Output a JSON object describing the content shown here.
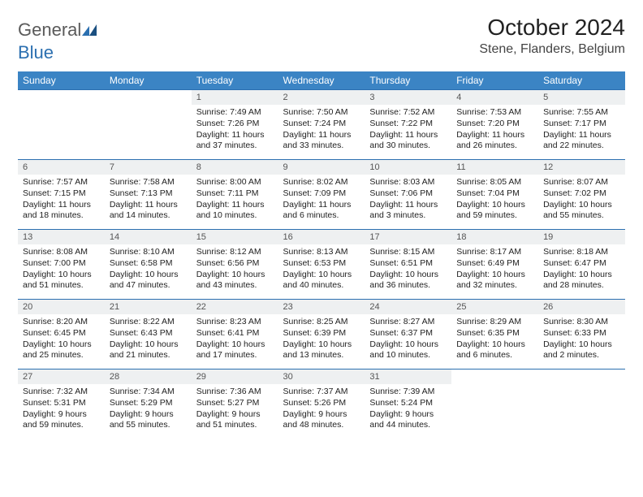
{
  "logo": {
    "general": "General",
    "blue": "Blue"
  },
  "title": "October 2024",
  "location": "Stene, Flanders, Belgium",
  "header_color": "#3b84c4",
  "divider_color": "#2b6fb0",
  "daynum_bg": "#eef0f1",
  "days": [
    "Sunday",
    "Monday",
    "Tuesday",
    "Wednesday",
    "Thursday",
    "Friday",
    "Saturday"
  ],
  "weeks": [
    [
      null,
      null,
      {
        "n": "1",
        "sr": "Sunrise: 7:49 AM",
        "ss": "Sunset: 7:26 PM",
        "dl": "Daylight: 11 hours and 37 minutes."
      },
      {
        "n": "2",
        "sr": "Sunrise: 7:50 AM",
        "ss": "Sunset: 7:24 PM",
        "dl": "Daylight: 11 hours and 33 minutes."
      },
      {
        "n": "3",
        "sr": "Sunrise: 7:52 AM",
        "ss": "Sunset: 7:22 PM",
        "dl": "Daylight: 11 hours and 30 minutes."
      },
      {
        "n": "4",
        "sr": "Sunrise: 7:53 AM",
        "ss": "Sunset: 7:20 PM",
        "dl": "Daylight: 11 hours and 26 minutes."
      },
      {
        "n": "5",
        "sr": "Sunrise: 7:55 AM",
        "ss": "Sunset: 7:17 PM",
        "dl": "Daylight: 11 hours and 22 minutes."
      }
    ],
    [
      {
        "n": "6",
        "sr": "Sunrise: 7:57 AM",
        "ss": "Sunset: 7:15 PM",
        "dl": "Daylight: 11 hours and 18 minutes."
      },
      {
        "n": "7",
        "sr": "Sunrise: 7:58 AM",
        "ss": "Sunset: 7:13 PM",
        "dl": "Daylight: 11 hours and 14 minutes."
      },
      {
        "n": "8",
        "sr": "Sunrise: 8:00 AM",
        "ss": "Sunset: 7:11 PM",
        "dl": "Daylight: 11 hours and 10 minutes."
      },
      {
        "n": "9",
        "sr": "Sunrise: 8:02 AM",
        "ss": "Sunset: 7:09 PM",
        "dl": "Daylight: 11 hours and 6 minutes."
      },
      {
        "n": "10",
        "sr": "Sunrise: 8:03 AM",
        "ss": "Sunset: 7:06 PM",
        "dl": "Daylight: 11 hours and 3 minutes."
      },
      {
        "n": "11",
        "sr": "Sunrise: 8:05 AM",
        "ss": "Sunset: 7:04 PM",
        "dl": "Daylight: 10 hours and 59 minutes."
      },
      {
        "n": "12",
        "sr": "Sunrise: 8:07 AM",
        "ss": "Sunset: 7:02 PM",
        "dl": "Daylight: 10 hours and 55 minutes."
      }
    ],
    [
      {
        "n": "13",
        "sr": "Sunrise: 8:08 AM",
        "ss": "Sunset: 7:00 PM",
        "dl": "Daylight: 10 hours and 51 minutes."
      },
      {
        "n": "14",
        "sr": "Sunrise: 8:10 AM",
        "ss": "Sunset: 6:58 PM",
        "dl": "Daylight: 10 hours and 47 minutes."
      },
      {
        "n": "15",
        "sr": "Sunrise: 8:12 AM",
        "ss": "Sunset: 6:56 PM",
        "dl": "Daylight: 10 hours and 43 minutes."
      },
      {
        "n": "16",
        "sr": "Sunrise: 8:13 AM",
        "ss": "Sunset: 6:53 PM",
        "dl": "Daylight: 10 hours and 40 minutes."
      },
      {
        "n": "17",
        "sr": "Sunrise: 8:15 AM",
        "ss": "Sunset: 6:51 PM",
        "dl": "Daylight: 10 hours and 36 minutes."
      },
      {
        "n": "18",
        "sr": "Sunrise: 8:17 AM",
        "ss": "Sunset: 6:49 PM",
        "dl": "Daylight: 10 hours and 32 minutes."
      },
      {
        "n": "19",
        "sr": "Sunrise: 8:18 AM",
        "ss": "Sunset: 6:47 PM",
        "dl": "Daylight: 10 hours and 28 minutes."
      }
    ],
    [
      {
        "n": "20",
        "sr": "Sunrise: 8:20 AM",
        "ss": "Sunset: 6:45 PM",
        "dl": "Daylight: 10 hours and 25 minutes."
      },
      {
        "n": "21",
        "sr": "Sunrise: 8:22 AM",
        "ss": "Sunset: 6:43 PM",
        "dl": "Daylight: 10 hours and 21 minutes."
      },
      {
        "n": "22",
        "sr": "Sunrise: 8:23 AM",
        "ss": "Sunset: 6:41 PM",
        "dl": "Daylight: 10 hours and 17 minutes."
      },
      {
        "n": "23",
        "sr": "Sunrise: 8:25 AM",
        "ss": "Sunset: 6:39 PM",
        "dl": "Daylight: 10 hours and 13 minutes."
      },
      {
        "n": "24",
        "sr": "Sunrise: 8:27 AM",
        "ss": "Sunset: 6:37 PM",
        "dl": "Daylight: 10 hours and 10 minutes."
      },
      {
        "n": "25",
        "sr": "Sunrise: 8:29 AM",
        "ss": "Sunset: 6:35 PM",
        "dl": "Daylight: 10 hours and 6 minutes."
      },
      {
        "n": "26",
        "sr": "Sunrise: 8:30 AM",
        "ss": "Sunset: 6:33 PM",
        "dl": "Daylight: 10 hours and 2 minutes."
      }
    ],
    [
      {
        "n": "27",
        "sr": "Sunrise: 7:32 AM",
        "ss": "Sunset: 5:31 PM",
        "dl": "Daylight: 9 hours and 59 minutes."
      },
      {
        "n": "28",
        "sr": "Sunrise: 7:34 AM",
        "ss": "Sunset: 5:29 PM",
        "dl": "Daylight: 9 hours and 55 minutes."
      },
      {
        "n": "29",
        "sr": "Sunrise: 7:36 AM",
        "ss": "Sunset: 5:27 PM",
        "dl": "Daylight: 9 hours and 51 minutes."
      },
      {
        "n": "30",
        "sr": "Sunrise: 7:37 AM",
        "ss": "Sunset: 5:26 PM",
        "dl": "Daylight: 9 hours and 48 minutes."
      },
      {
        "n": "31",
        "sr": "Sunrise: 7:39 AM",
        "ss": "Sunset: 5:24 PM",
        "dl": "Daylight: 9 hours and 44 minutes."
      },
      null,
      null
    ]
  ]
}
